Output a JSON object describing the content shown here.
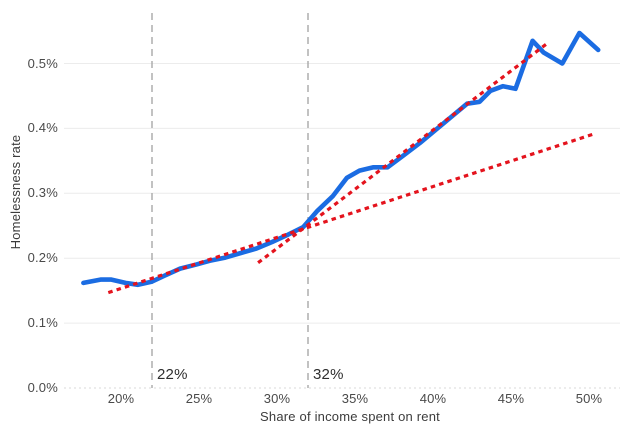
{
  "chart_data": {
    "type": "line",
    "title": "",
    "xlabel": "Share of income spent on rent",
    "ylabel": "Homelessness rate",
    "x_unit": "percent share of income",
    "y_unit": "percent homelessness rate",
    "xlim": [
      17,
      51.5
    ],
    "ylim": [
      0.0,
      0.58
    ],
    "grid": "horizontal",
    "legend": "none",
    "x_ticks": [
      {
        "value": 20,
        "label": "20%"
      },
      {
        "value": 25,
        "label": "25%"
      },
      {
        "value": 30,
        "label": "30%"
      },
      {
        "value": 35,
        "label": "35%"
      },
      {
        "value": 40,
        "label": "40%"
      },
      {
        "value": 45,
        "label": "45%"
      },
      {
        "value": 50,
        "label": "50%"
      }
    ],
    "y_ticks": [
      {
        "value": 0.0,
        "label": "0.0%"
      },
      {
        "value": 0.1,
        "label": "0.1%"
      },
      {
        "value": 0.2,
        "label": "0.2%"
      },
      {
        "value": 0.3,
        "label": "0.3%"
      },
      {
        "value": 0.4,
        "label": "0.4%"
      },
      {
        "value": 0.5,
        "label": "0.5%"
      }
    ],
    "series": [
      {
        "name": "homelessness-rate-curve",
        "style": "solid",
        "points": [
          [
            17.6,
            0.162
          ],
          [
            18.7,
            0.167
          ],
          [
            19.4,
            0.167
          ],
          [
            20.3,
            0.162
          ],
          [
            21.1,
            0.159
          ],
          [
            22.0,
            0.164
          ],
          [
            22.8,
            0.173
          ],
          [
            23.8,
            0.184
          ],
          [
            24.8,
            0.19
          ],
          [
            25.7,
            0.196
          ],
          [
            26.7,
            0.201
          ],
          [
            27.7,
            0.208
          ],
          [
            28.7,
            0.215
          ],
          [
            29.7,
            0.225
          ],
          [
            30.7,
            0.236
          ],
          [
            31.7,
            0.248
          ],
          [
            32.6,
            0.273
          ],
          [
            33.6,
            0.296
          ],
          [
            34.5,
            0.324
          ],
          [
            35.3,
            0.335
          ],
          [
            36.2,
            0.34
          ],
          [
            37.1,
            0.34
          ],
          [
            38.1,
            0.358
          ],
          [
            39.2,
            0.378
          ],
          [
            40.3,
            0.4
          ],
          [
            41.3,
            0.42
          ],
          [
            42.2,
            0.438
          ],
          [
            43.0,
            0.441
          ],
          [
            43.7,
            0.458
          ],
          [
            44.5,
            0.465
          ],
          [
            45.3,
            0.461
          ],
          [
            46.4,
            0.535
          ],
          [
            47.1,
            0.517
          ],
          [
            48.3,
            0.5
          ],
          [
            49.4,
            0.547
          ],
          [
            50.6,
            0.521
          ]
        ]
      },
      {
        "name": "trend-below-32pct",
        "style": "dotted",
        "points": [
          [
            19.2,
            0.147
          ],
          [
            50.4,
            0.392
          ]
        ]
      },
      {
        "name": "trend-above-32pct",
        "style": "dotted",
        "points": [
          [
            28.8,
            0.193
          ],
          [
            47.4,
            0.532
          ]
        ]
      }
    ],
    "reference_lines": [
      {
        "x": 22,
        "label": "22%"
      },
      {
        "x": 32,
        "label": "32%"
      }
    ]
  },
  "colors": {
    "main_line": "#1b6ce2",
    "trend_line": "#e4131d",
    "reference_line": "#a9a9a9",
    "gridline": "#ececec",
    "baseline": "#d8d8d8",
    "tick_text": "#4a4a4a",
    "axis_title_text": "#3c3c3c",
    "annotation_text": "#2e2e2e",
    "background": "#ffffff"
  }
}
